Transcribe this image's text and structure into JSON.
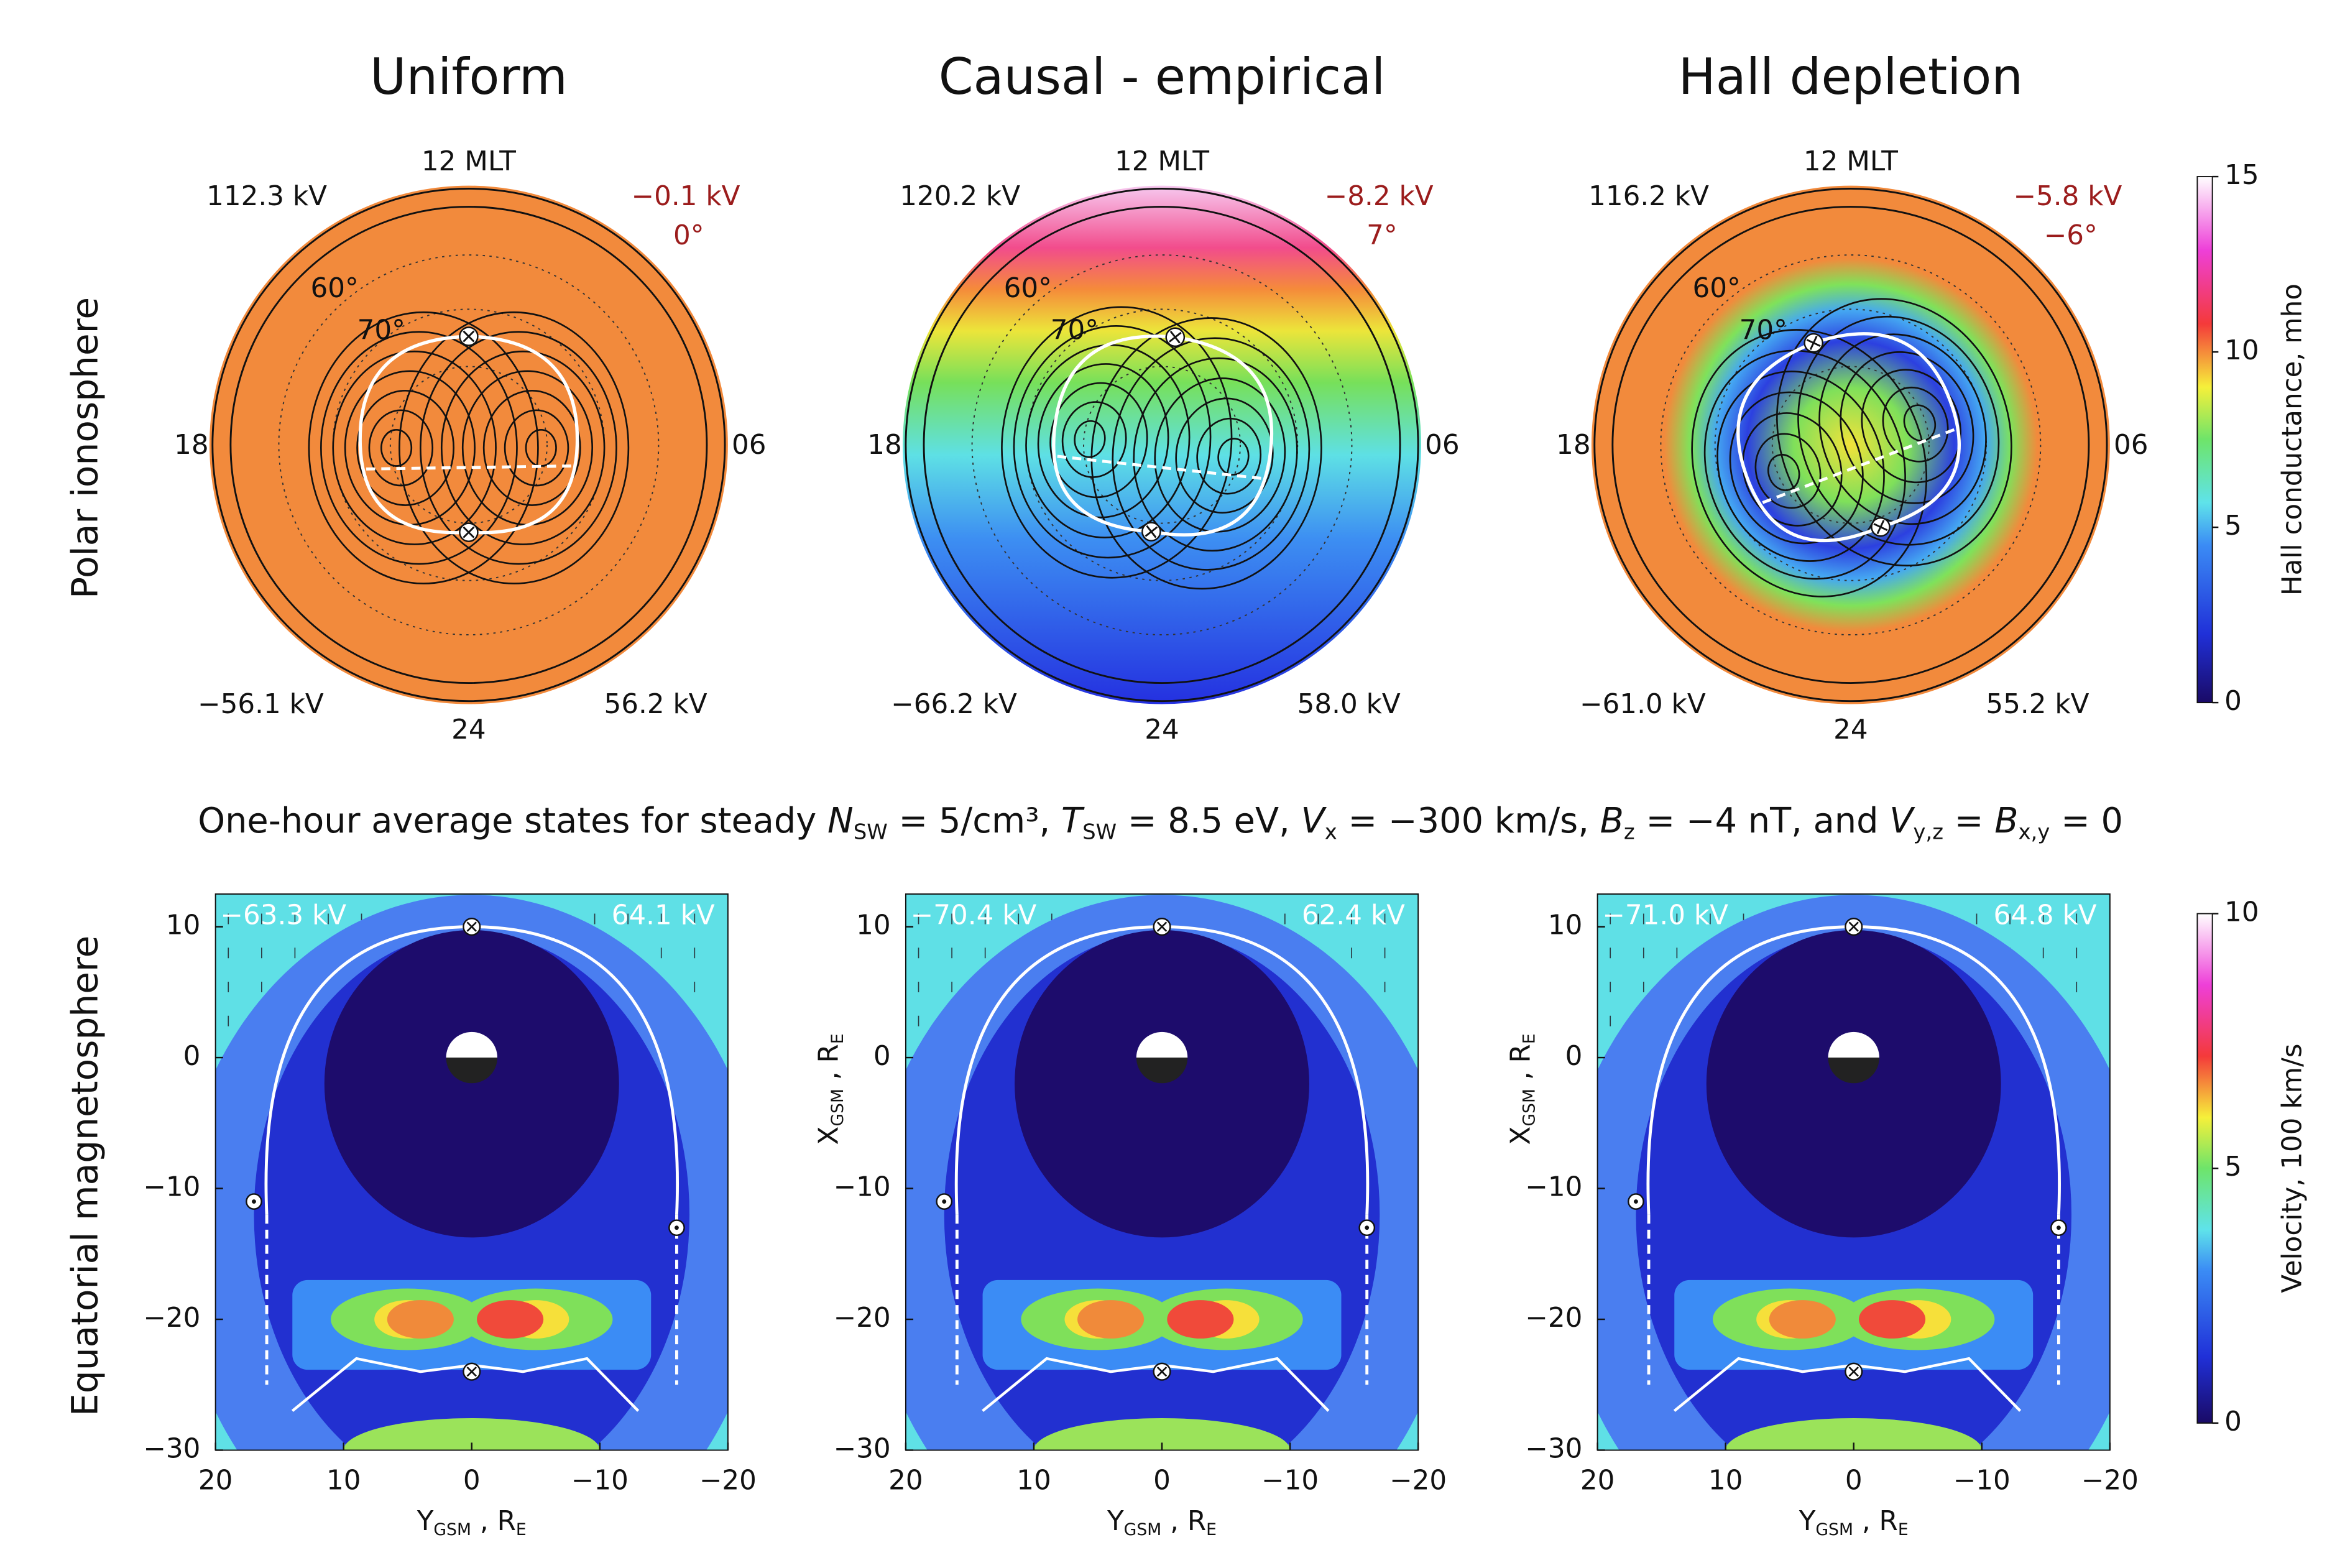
{
  "column_titles": [
    "Uniform",
    "Causal - empirical",
    "Hall depletion"
  ],
  "row_labels": [
    "Polar ionosphere",
    "Equatorial magnetosphere"
  ],
  "polar_panels": [
    {
      "top": "12 MLT",
      "left": "18",
      "right": "06",
      "bottom": "24",
      "lat_labels": [
        "60°",
        "70°"
      ],
      "upper_left": "112.3 kV",
      "upper_right": "−0.1 kV",
      "angle": "0°",
      "lower_left": "−56.1 kV",
      "lower_right": "56.2 kV"
    },
    {
      "top": "12 MLT",
      "left": "18",
      "right": "06",
      "bottom": "24",
      "lat_labels": [
        "60°",
        "70°"
      ],
      "upper_left": "120.2 kV",
      "upper_right": "−8.2 kV",
      "angle": "7°",
      "lower_left": "−66.2 kV",
      "lower_right": "58.0 kV"
    },
    {
      "top": "12 MLT",
      "left": "18",
      "right": "06",
      "bottom": "24",
      "lat_labels": [
        "60°",
        "70°"
      ],
      "upper_left": "116.2 kV",
      "upper_right": "−5.8 kV",
      "angle": "−6°",
      "lower_left": "−61.0 kV",
      "lower_right": "55.2 kV"
    }
  ],
  "caption": [
    {
      "text": "One-hour average states for steady ",
      "style": "normal"
    },
    {
      "text": "N",
      "style": "italic"
    },
    {
      "text": "SW",
      "style": "sub"
    },
    {
      "text": " = 5/cm³, ",
      "style": "normal"
    },
    {
      "text": "T",
      "style": "italic"
    },
    {
      "text": "SW",
      "style": "sub"
    },
    {
      "text": " = 8.5 eV, ",
      "style": "normal"
    },
    {
      "text": "V",
      "style": "italic"
    },
    {
      "text": "x",
      "style": "sub"
    },
    {
      "text": " = −300 km/s, ",
      "style": "normal"
    },
    {
      "text": "B",
      "style": "italic"
    },
    {
      "text": "z",
      "style": "sub"
    },
    {
      "text": " = −4 nT, and ",
      "style": "normal"
    },
    {
      "text": "V",
      "style": "italic"
    },
    {
      "text": "y,z",
      "style": "sub"
    },
    {
      "text": " = ",
      "style": "normal"
    },
    {
      "text": "B",
      "style": "italic"
    },
    {
      "text": "x,y",
      "style": "sub"
    },
    {
      "text": " = 0",
      "style": "normal"
    }
  ],
  "equatorial_panels": [
    {
      "left_potential": "−63.3 kV",
      "right_potential": "64.1 kV"
    },
    {
      "left_potential": "−70.4 kV",
      "right_potential": "62.4 kV"
    },
    {
      "left_potential": "−71.0 kV",
      "right_potential": "64.8 kV"
    }
  ],
  "equatorial_axes": {
    "xlim": [
      20,
      -20
    ],
    "ylim": [
      -30,
      12.5
    ],
    "xticks": [
      20,
      10,
      0,
      {
        "value": -10,
        "label": "−10"
      },
      {
        "value": -20,
        "label": "−20"
      }
    ],
    "yticks": [
      10,
      0,
      {
        "value": -10,
        "label": "−10"
      },
      {
        "value": -20,
        "label": "−20"
      },
      {
        "value": -30,
        "label": "−30"
      }
    ],
    "x_label": [
      {
        "text": "Y",
        "style": "normal"
      },
      {
        "text": "GSM",
        "style": "sub"
      },
      {
        "text": " , R",
        "style": "normal"
      },
      {
        "text": "E",
        "style": "sub"
      }
    ],
    "y_label": [
      {
        "text": "X",
        "style": "normal"
      },
      {
        "text": "GSM",
        "style": "sub"
      },
      {
        "text": " , R",
        "style": "normal"
      },
      {
        "text": "E",
        "style": "sub"
      }
    ]
  },
  "colorbars": [
    {
      "label": "Hall conductance, mho",
      "lim": [
        0,
        15
      ],
      "ticks": [
        0,
        5,
        10,
        15
      ]
    },
    {
      "label": "Velocity, 100 km/s",
      "lim": [
        0,
        10
      ],
      "ticks": [
        0,
        5,
        10
      ]
    }
  ]
}
